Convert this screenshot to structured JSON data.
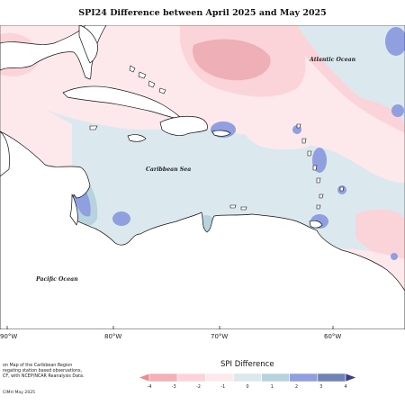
{
  "title": "SPI24 Difference between April 2025 and May 2025",
  "ocean_labels": {
    "atlantic": "Atlantic Ocean",
    "caribbean": "Caribbean Sea",
    "pacific": "Pacific Ocean"
  },
  "longitude_labels": [
    "90°W",
    "80°W",
    "70°W",
    "60°W"
  ],
  "notes": [
    "on Map of the Caribbean Region",
    "regating station based observations,",
    "CF, with NCEP/NCAR Reanalysis Data."
  ],
  "credit": "CIMH May 2025",
  "legend": {
    "title": "SPI Difference",
    "ticks": [
      "-4",
      "-3",
      "-2",
      "-1",
      "0",
      "1",
      "2",
      "3",
      "4"
    ],
    "colors": [
      "#ef8a8f",
      "#f4b0b6",
      "#fbd4da",
      "#fde8ec",
      "#dbe9ee",
      "#b7d4de",
      "#8f9fe0",
      "#6f84b5",
      "#3a3d8c"
    ]
  },
  "colors": {
    "land": "#ffffff",
    "coast": "#111111",
    "neutral": "#dbe9ee",
    "dry_light": "#fde8ec",
    "dry_mid": "#fbd4da",
    "dry_strong": "#eeb0b6",
    "wet_mid": "#b7d4de",
    "wet_strong": "#8f9fe0"
  }
}
